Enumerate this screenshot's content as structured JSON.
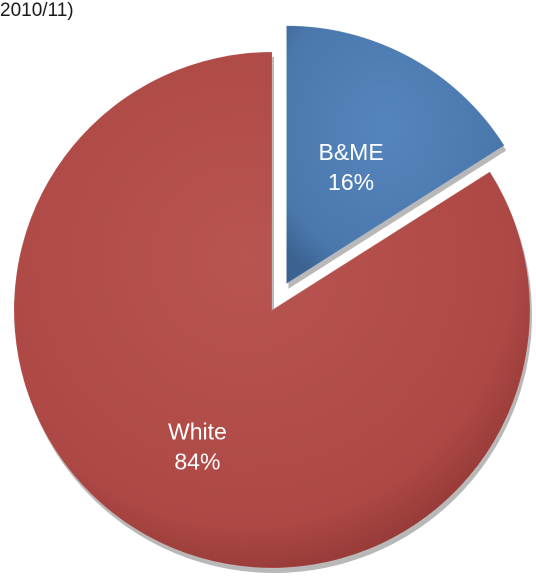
{
  "chart_data": {
    "type": "pie",
    "title": "2010/11)",
    "slices": [
      {
        "name": "B&ME",
        "value": 16,
        "label": "16%",
        "color": "#4f7db3",
        "exploded": true
      },
      {
        "name": "White",
        "value": 84,
        "label": "84%",
        "color": "#b04a47",
        "exploded": false
      }
    ]
  }
}
